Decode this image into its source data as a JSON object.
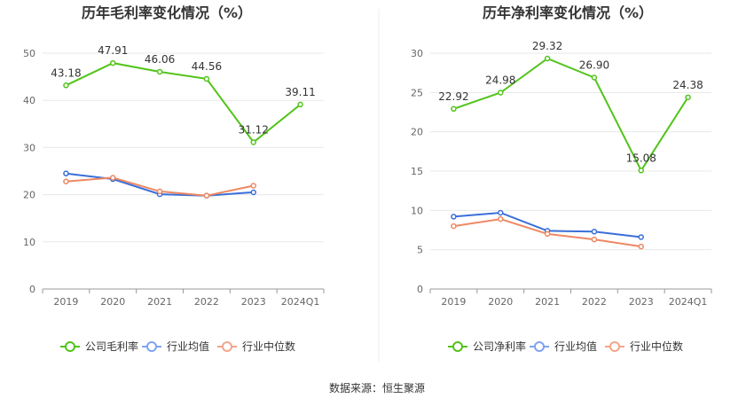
{
  "colors": {
    "company": "#52c41a",
    "industry_avg": "#3a6fd8",
    "industry_median": "#ee8862",
    "legend_avg": "#7fa3f0",
    "legend_median": "#f4a58a",
    "grid": "#e8e8e8",
    "axis": "#999999"
  },
  "source": "数据来源：恒生聚源",
  "chart_data": [
    {
      "type": "line",
      "title": "历年毛利率变化情况（%）",
      "categories": [
        "2019",
        "2020",
        "2021",
        "2022",
        "2023",
        "2024Q1"
      ],
      "ylim": [
        0,
        50
      ],
      "yticks": [
        "0",
        "10",
        "20",
        "30",
        "40",
        "50"
      ],
      "grid": true,
      "legend_position": "bottom",
      "series": [
        {
          "name": "公司毛利率",
          "key": "company",
          "values": [
            43.18,
            47.91,
            46.06,
            44.56,
            31.12,
            39.11
          ],
          "labels": [
            "43.18",
            "47.91",
            "46.06",
            "44.56",
            "31.12",
            "39.11"
          ]
        },
        {
          "name": "行业均值",
          "key": "industry_avg",
          "values": [
            24.5,
            23.3,
            20.1,
            19.8,
            20.5,
            null
          ]
        },
        {
          "name": "行业中位数",
          "key": "industry_median",
          "values": [
            22.8,
            23.6,
            20.7,
            19.8,
            21.9,
            null
          ]
        }
      ]
    },
    {
      "type": "line",
      "title": "历年净利率变化情况（%）",
      "categories": [
        "2019",
        "2020",
        "2021",
        "2022",
        "2023",
        "2024Q1"
      ],
      "ylim": [
        0,
        30
      ],
      "yticks": [
        "0",
        "5",
        "10",
        "15",
        "20",
        "25",
        "30"
      ],
      "grid": true,
      "legend_position": "bottom",
      "series": [
        {
          "name": "公司净利率",
          "key": "company",
          "values": [
            22.92,
            24.98,
            29.32,
            26.9,
            15.08,
            24.38
          ],
          "labels": [
            "22.92",
            "24.98",
            "29.32",
            "26.90",
            "15.08",
            "24.38"
          ]
        },
        {
          "name": "行业均值",
          "key": "industry_avg",
          "values": [
            9.2,
            9.7,
            7.4,
            7.3,
            6.6,
            null
          ]
        },
        {
          "name": "行业中位数",
          "key": "industry_median",
          "values": [
            8.0,
            8.9,
            7.0,
            6.3,
            5.4,
            null
          ]
        }
      ]
    }
  ]
}
